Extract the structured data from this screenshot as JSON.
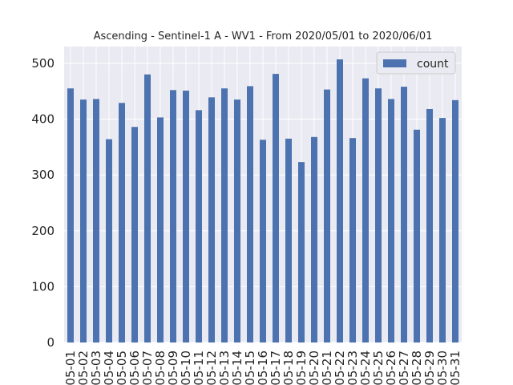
{
  "chart_data": {
    "type": "bar",
    "title": "Ascending - Sentinel-1 A - WV1 - From 2020/05/01 to 2020/06/01",
    "xlabel": "",
    "ylabel": "",
    "categories": [
      "05-01",
      "05-02",
      "05-03",
      "05-04",
      "05-05",
      "05-06",
      "05-07",
      "05-08",
      "05-09",
      "05-10",
      "05-11",
      "05-12",
      "05-13",
      "05-14",
      "05-15",
      "05-16",
      "05-17",
      "05-18",
      "05-19",
      "05-20",
      "05-21",
      "05-22",
      "05-23",
      "05-24",
      "05-25",
      "05-26",
      "05-27",
      "05-28",
      "05-29",
      "05-30",
      "05-31"
    ],
    "series": [
      {
        "name": "count",
        "color": "#4c72b0",
        "values": [
          455,
          435,
          436,
          364,
          429,
          386,
          480,
          403,
          452,
          451,
          416,
          439,
          455,
          435,
          459,
          363,
          481,
          365,
          323,
          368,
          453,
          507,
          366,
          473,
          455,
          436,
          458,
          381,
          418,
          402,
          434
        ]
      }
    ],
    "ylim": [
      0,
      530
    ],
    "yticks": [
      0,
      100,
      200,
      300,
      400,
      500
    ],
    "grid": true,
    "legend_position": "top-right",
    "background_color": "#eaeaf2"
  }
}
